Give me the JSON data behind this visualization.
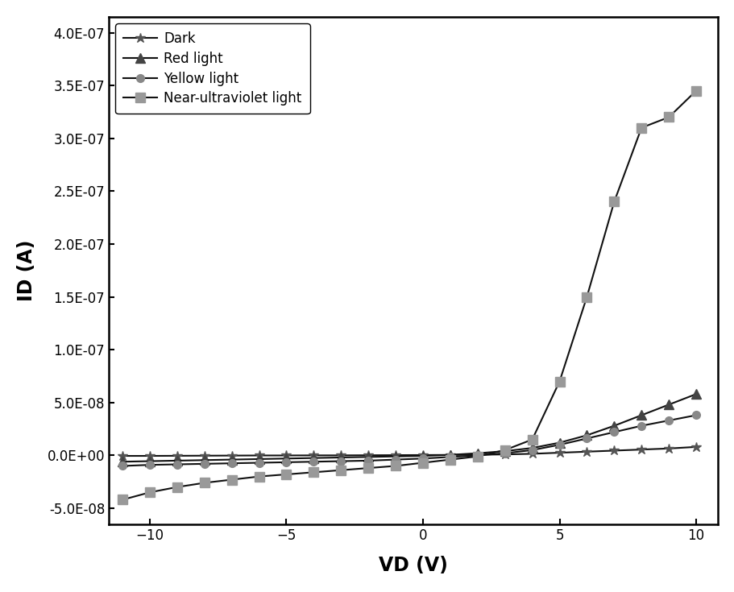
{
  "title": "",
  "xlabel": "VD (V)",
  "ylabel": "ID (A)",
  "xlim": [
    -11.5,
    10.8
  ],
  "ylim": [
    -6.5e-08,
    4.15e-07
  ],
  "xticks": [
    -10,
    -5,
    0,
    5,
    10
  ],
  "yticks": [
    -5e-08,
    0.0,
    5e-08,
    1e-07,
    1.5e-07,
    2e-07,
    2.5e-07,
    3e-07,
    3.5e-07,
    4e-07
  ],
  "ytick_labels": [
    "-5.0E-08",
    "0.0E+00",
    "5.0E-08",
    "1.0E-07",
    "1.5E-07",
    "2.0E-07",
    "2.5E-07",
    "3.0E-07",
    "3.5E-07",
    "4.0E-07"
  ],
  "background_color": "#ffffff",
  "series": [
    {
      "label": "Dark",
      "marker": "*",
      "markercolor": "#555555",
      "linecolor": "#111111",
      "markersize": 9,
      "x": [
        -11,
        -10,
        -9,
        -8,
        -7,
        -6,
        -5,
        -4,
        -3,
        -2,
        -1,
        0,
        1,
        2,
        3,
        4,
        5,
        6,
        7,
        8,
        9,
        10
      ],
      "y": [
        -5e-10,
        -5e-10,
        -4e-10,
        -3e-10,
        -2e-10,
        -1e-10,
        -1e-10,
        0,
        0,
        1e-10,
        2e-10,
        3e-10,
        4e-10,
        6e-10,
        9e-10,
        1.5e-09,
        2.5e-09,
        3.5e-09,
        4.5e-09,
        5.5e-09,
        6.5e-09,
        8e-09
      ]
    },
    {
      "label": "Red light",
      "marker": "^",
      "markercolor": "#444444",
      "linecolor": "#111111",
      "markersize": 8,
      "x": [
        -11,
        -10,
        -9,
        -8,
        -7,
        -6,
        -5,
        -4,
        -3,
        -2,
        -1,
        0,
        1,
        2,
        3,
        4,
        5,
        6,
        7,
        8,
        9,
        10
      ],
      "y": [
        -6e-09,
        -5.5e-09,
        -5e-09,
        -4.5e-09,
        -4e-09,
        -3.5e-09,
        -3e-09,
        -2.5e-09,
        -2e-09,
        -1.5e-09,
        -1e-09,
        -5e-10,
        5e-10,
        2e-09,
        4e-09,
        7e-09,
        1.2e-08,
        1.9e-08,
        2.8e-08,
        3.8e-08,
        4.8e-08,
        5.8e-08
      ]
    },
    {
      "label": "Yellow light",
      "marker": "o",
      "markercolor": "#888888",
      "linecolor": "#111111",
      "markersize": 7,
      "x": [
        -11,
        -10,
        -9,
        -8,
        -7,
        -6,
        -5,
        -4,
        -3,
        -2,
        -1,
        0,
        1,
        2,
        3,
        4,
        5,
        6,
        7,
        8,
        9,
        10
      ],
      "y": [
        -1e-08,
        -9e-09,
        -8.5e-09,
        -8e-09,
        -7.5e-09,
        -7e-09,
        -6.5e-09,
        -6e-09,
        -5.5e-09,
        -5e-09,
        -4e-09,
        -3e-09,
        -1.5e-09,
        0,
        2e-09,
        5e-09,
        1e-08,
        1.6e-08,
        2.2e-08,
        2.8e-08,
        3.3e-08,
        3.8e-08
      ]
    },
    {
      "label": "Near-ultraviolet light",
      "marker": "s",
      "markercolor": "#999999",
      "linecolor": "#111111",
      "markersize": 8,
      "x": [
        -11,
        -10,
        -9,
        -8,
        -7,
        -6,
        -5,
        -4,
        -3,
        -2,
        -1,
        0,
        1,
        2,
        3,
        4,
        5,
        6,
        7,
        8,
        9,
        10
      ],
      "y": [
        -4.2e-08,
        -3.5e-08,
        -3e-08,
        -2.6e-08,
        -2.3e-08,
        -2e-08,
        -1.8e-08,
        -1.6e-08,
        -1.4e-08,
        -1.2e-08,
        -1e-08,
        -7e-09,
        -4e-09,
        -1e-09,
        5e-09,
        1.5e-08,
        7e-08,
        1.5e-07,
        2.4e-07,
        3.1e-07,
        3.2e-07,
        3.45e-07
      ]
    }
  ]
}
